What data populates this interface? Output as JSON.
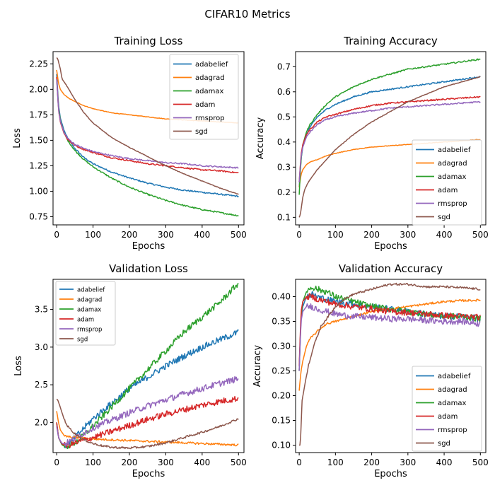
{
  "suptitle": "CIFAR10 Metrics",
  "colors": {
    "adabelief": "#1f77b4",
    "adagrad": "#ff7f0e",
    "adamax": "#2ca02c",
    "adam": "#d62728",
    "rmsprop": "#9467bd",
    "sgd": "#8c564b"
  },
  "chart_data": [
    {
      "type": "line",
      "title": "Training Loss",
      "xlabel": "Epochs",
      "ylabel": "Loss",
      "xlim": [
        -10,
        515
      ],
      "ylim": [
        0.67,
        2.37
      ],
      "xticks": [
        0,
        100,
        200,
        300,
        400,
        500
      ],
      "yticks": [
        0.75,
        1.0,
        1.25,
        1.5,
        1.75,
        2.0,
        2.25
      ],
      "ytick_labels": [
        "0.75",
        "1.00",
        "1.25",
        "1.50",
        "1.75",
        "2.00",
        "2.25"
      ],
      "legend": "top-right",
      "series": [
        {
          "name": "adabelief",
          "x": [
            0,
            5,
            10,
            20,
            30,
            50,
            75,
            100,
            150,
            200,
            250,
            300,
            350,
            400,
            450,
            500
          ],
          "y": [
            2.15,
            1.85,
            1.72,
            1.6,
            1.52,
            1.42,
            1.33,
            1.27,
            1.19,
            1.13,
            1.08,
            1.04,
            1.01,
            0.99,
            0.97,
            0.95
          ]
        },
        {
          "name": "adagrad",
          "x": [
            0,
            5,
            10,
            20,
            30,
            50,
            75,
            100,
            150,
            200,
            250,
            300,
            350,
            400,
            450,
            500
          ],
          "y": [
            2.19,
            2.06,
            2.0,
            1.95,
            1.92,
            1.88,
            1.84,
            1.81,
            1.77,
            1.75,
            1.73,
            1.71,
            1.7,
            1.69,
            1.68,
            1.67
          ]
        },
        {
          "name": "adamax",
          "x": [
            0,
            5,
            10,
            20,
            30,
            50,
            75,
            100,
            150,
            200,
            250,
            300,
            350,
            400,
            450,
            500
          ],
          "y": [
            2.1,
            1.83,
            1.7,
            1.58,
            1.5,
            1.4,
            1.31,
            1.24,
            1.13,
            1.04,
            0.97,
            0.91,
            0.86,
            0.82,
            0.79,
            0.76
          ]
        },
        {
          "name": "adam",
          "x": [
            0,
            5,
            10,
            20,
            30,
            50,
            75,
            100,
            150,
            200,
            250,
            300,
            350,
            400,
            450,
            500
          ],
          "y": [
            2.12,
            1.8,
            1.68,
            1.57,
            1.51,
            1.45,
            1.41,
            1.38,
            1.33,
            1.3,
            1.27,
            1.25,
            1.23,
            1.21,
            1.2,
            1.18
          ]
        },
        {
          "name": "rmsprop",
          "x": [
            0,
            5,
            10,
            20,
            30,
            50,
            75,
            100,
            150,
            200,
            250,
            300,
            350,
            400,
            450,
            500
          ],
          "y": [
            2.1,
            1.8,
            1.69,
            1.58,
            1.52,
            1.46,
            1.42,
            1.39,
            1.35,
            1.32,
            1.3,
            1.28,
            1.27,
            1.25,
            1.24,
            1.23
          ]
        },
        {
          "name": "sgd",
          "x": [
            0,
            3,
            10,
            15,
            25,
            50,
            75,
            100,
            150,
            200,
            250,
            300,
            350,
            400,
            450,
            500
          ],
          "y": [
            2.31,
            2.3,
            2.2,
            2.1,
            2.05,
            1.9,
            1.77,
            1.67,
            1.53,
            1.43,
            1.34,
            1.25,
            1.17,
            1.1,
            1.03,
            0.97
          ]
        }
      ]
    },
    {
      "type": "line",
      "title": "Training Accuracy",
      "xlabel": "Epochs",
      "ylabel": "Accuracy",
      "xlim": [
        -10,
        515
      ],
      "ylim": [
        0.07,
        0.76
      ],
      "xticks": [
        0,
        100,
        200,
        300,
        400,
        500
      ],
      "yticks": [
        0.1,
        0.2,
        0.3,
        0.4,
        0.5,
        0.6,
        0.7
      ],
      "ytick_labels": [
        "0.1",
        "0.2",
        "0.3",
        "0.4",
        "0.5",
        "0.6",
        "0.7"
      ],
      "legend": "bottom-right",
      "series": [
        {
          "name": "adabelief",
          "x": [
            0,
            5,
            10,
            20,
            30,
            50,
            75,
            100,
            150,
            200,
            250,
            300,
            350,
            400,
            450,
            500
          ],
          "y": [
            0.22,
            0.33,
            0.38,
            0.43,
            0.46,
            0.5,
            0.53,
            0.55,
            0.58,
            0.6,
            0.61,
            0.62,
            0.63,
            0.64,
            0.65,
            0.66
          ]
        },
        {
          "name": "adagrad",
          "x": [
            0,
            5,
            10,
            20,
            30,
            50,
            75,
            100,
            150,
            200,
            250,
            300,
            350,
            400,
            450,
            500
          ],
          "y": [
            0.22,
            0.27,
            0.29,
            0.31,
            0.32,
            0.33,
            0.345,
            0.355,
            0.37,
            0.38,
            0.385,
            0.39,
            0.395,
            0.4,
            0.405,
            0.41
          ]
        },
        {
          "name": "adamax",
          "x": [
            0,
            5,
            10,
            20,
            30,
            50,
            75,
            100,
            150,
            200,
            250,
            300,
            350,
            400,
            450,
            500
          ],
          "y": [
            0.19,
            0.33,
            0.39,
            0.44,
            0.47,
            0.51,
            0.55,
            0.58,
            0.62,
            0.65,
            0.67,
            0.69,
            0.7,
            0.71,
            0.72,
            0.73
          ]
        },
        {
          "name": "adam",
          "x": [
            0,
            5,
            10,
            20,
            30,
            50,
            75,
            100,
            150,
            200,
            250,
            300,
            350,
            400,
            450,
            500
          ],
          "y": [
            0.24,
            0.35,
            0.39,
            0.43,
            0.45,
            0.48,
            0.5,
            0.51,
            0.53,
            0.545,
            0.555,
            0.56,
            0.565,
            0.57,
            0.575,
            0.58
          ]
        },
        {
          "name": "rmsprop",
          "x": [
            0,
            5,
            10,
            20,
            30,
            50,
            75,
            100,
            150,
            200,
            250,
            300,
            350,
            400,
            450,
            500
          ],
          "y": [
            0.24,
            0.34,
            0.38,
            0.42,
            0.44,
            0.47,
            0.49,
            0.5,
            0.515,
            0.525,
            0.535,
            0.54,
            0.545,
            0.55,
            0.555,
            0.56
          ]
        },
        {
          "name": "sgd",
          "x": [
            0,
            3,
            10,
            15,
            25,
            50,
            75,
            100,
            150,
            200,
            250,
            300,
            350,
            400,
            450,
            500
          ],
          "y": [
            0.1,
            0.11,
            0.18,
            0.21,
            0.24,
            0.29,
            0.33,
            0.37,
            0.43,
            0.48,
            0.52,
            0.56,
            0.59,
            0.62,
            0.64,
            0.66
          ]
        }
      ]
    },
    {
      "type": "line",
      "title": "Validation Loss",
      "xlabel": "Epochs",
      "ylabel": "Loss",
      "xlim": [
        -10,
        515
      ],
      "ylim": [
        1.6,
        3.9
      ],
      "xticks": [
        0,
        100,
        200,
        300,
        400,
        500
      ],
      "yticks": [
        2.0,
        2.5,
        3.0,
        3.5
      ],
      "ytick_labels": [
        "2.0",
        "2.5",
        "3.0",
        "3.5"
      ],
      "legend": "top-left",
      "series": [
        {
          "name": "adabelief",
          "x": [
            0,
            5,
            15,
            25,
            40,
            60,
            100,
            150,
            200,
            250,
            300,
            350,
            400,
            450,
            500
          ],
          "y": [
            2.0,
            1.8,
            1.7,
            1.69,
            1.74,
            1.85,
            2.05,
            2.25,
            2.45,
            2.6,
            2.75,
            2.88,
            3.0,
            3.1,
            3.2
          ]
        },
        {
          "name": "adagrad",
          "x": [
            0,
            5,
            10,
            20,
            30,
            50,
            75,
            100,
            150,
            200,
            250,
            300,
            350,
            400,
            450,
            500
          ],
          "y": [
            2.15,
            2.0,
            1.9,
            1.83,
            1.81,
            1.8,
            1.79,
            1.78,
            1.77,
            1.76,
            1.75,
            1.74,
            1.73,
            1.72,
            1.71,
            1.7
          ]
        },
        {
          "name": "adamax",
          "x": [
            0,
            5,
            15,
            25,
            40,
            60,
            100,
            150,
            200,
            250,
            300,
            350,
            400,
            450,
            500
          ],
          "y": [
            2.0,
            1.8,
            1.7,
            1.68,
            1.7,
            1.76,
            1.95,
            2.2,
            2.45,
            2.7,
            2.95,
            3.2,
            3.4,
            3.6,
            3.85
          ]
        },
        {
          "name": "adam",
          "x": [
            0,
            5,
            15,
            25,
            40,
            60,
            100,
            150,
            200,
            250,
            300,
            350,
            400,
            450,
            500
          ],
          "y": [
            2.0,
            1.8,
            1.71,
            1.69,
            1.71,
            1.74,
            1.8,
            1.88,
            1.96,
            2.04,
            2.11,
            2.17,
            2.23,
            2.28,
            2.32
          ]
        },
        {
          "name": "rmsprop",
          "x": [
            0,
            5,
            15,
            25,
            40,
            60,
            100,
            150,
            200,
            250,
            300,
            350,
            400,
            450,
            500
          ],
          "y": [
            1.95,
            1.8,
            1.72,
            1.72,
            1.76,
            1.82,
            1.93,
            2.03,
            2.13,
            2.22,
            2.3,
            2.38,
            2.45,
            2.52,
            2.58
          ]
        },
        {
          "name": "sgd",
          "x": [
            0,
            3,
            10,
            20,
            30,
            50,
            75,
            100,
            125,
            150,
            200,
            250,
            300,
            350,
            400,
            450,
            500
          ],
          "y": [
            2.31,
            2.3,
            2.2,
            2.05,
            1.95,
            1.85,
            1.77,
            1.72,
            1.69,
            1.67,
            1.66,
            1.68,
            1.73,
            1.8,
            1.87,
            1.95,
            2.05
          ]
        }
      ]
    },
    {
      "type": "line",
      "title": "Validation Accuracy",
      "xlabel": "Epochs",
      "ylabel": "Accuracy",
      "xlim": [
        -10,
        515
      ],
      "ylim": [
        0.085,
        0.435
      ],
      "xticks": [
        0,
        100,
        200,
        300,
        400,
        500
      ],
      "yticks": [
        0.1,
        0.15,
        0.2,
        0.25,
        0.3,
        0.35,
        0.4
      ],
      "ytick_labels": [
        "0.10",
        "0.15",
        "0.20",
        "0.25",
        "0.30",
        "0.35",
        "0.40"
      ],
      "legend": "bottom-right",
      "series": [
        {
          "name": "adabelief",
          "x": [
            0,
            5,
            10,
            20,
            35,
            50,
            75,
            100,
            150,
            200,
            250,
            300,
            350,
            400,
            450,
            500
          ],
          "y": [
            0.25,
            0.36,
            0.38,
            0.4,
            0.405,
            0.4,
            0.395,
            0.39,
            0.385,
            0.38,
            0.375,
            0.37,
            0.365,
            0.36,
            0.36,
            0.355
          ]
        },
        {
          "name": "adagrad",
          "x": [
            0,
            5,
            10,
            20,
            30,
            50,
            75,
            100,
            150,
            200,
            250,
            300,
            350,
            400,
            450,
            500
          ],
          "y": [
            0.21,
            0.25,
            0.27,
            0.3,
            0.315,
            0.33,
            0.345,
            0.35,
            0.36,
            0.37,
            0.375,
            0.38,
            0.385,
            0.39,
            0.392,
            0.393
          ]
        },
        {
          "name": "adamax",
          "x": [
            0,
            5,
            10,
            20,
            35,
            50,
            75,
            100,
            150,
            200,
            250,
            300,
            350,
            400,
            450,
            500
          ],
          "y": [
            0.25,
            0.36,
            0.39,
            0.41,
            0.42,
            0.415,
            0.41,
            0.4,
            0.39,
            0.38,
            0.375,
            0.37,
            0.365,
            0.36,
            0.36,
            0.355
          ]
        },
        {
          "name": "adam",
          "x": [
            0,
            5,
            10,
            20,
            35,
            50,
            75,
            100,
            150,
            200,
            250,
            300,
            350,
            400,
            450,
            500
          ],
          "y": [
            0.26,
            0.37,
            0.39,
            0.4,
            0.4,
            0.395,
            0.39,
            0.385,
            0.38,
            0.375,
            0.37,
            0.368,
            0.365,
            0.362,
            0.36,
            0.358
          ]
        },
        {
          "name": "rmsprop",
          "x": [
            0,
            5,
            10,
            20,
            35,
            50,
            75,
            100,
            150,
            200,
            250,
            300,
            350,
            400,
            450,
            500
          ],
          "y": [
            0.25,
            0.35,
            0.37,
            0.38,
            0.38,
            0.375,
            0.37,
            0.365,
            0.36,
            0.358,
            0.355,
            0.355,
            0.352,
            0.35,
            0.35,
            0.345
          ]
        },
        {
          "name": "sgd",
          "x": [
            0,
            3,
            8,
            15,
            25,
            40,
            60,
            80,
            100,
            125,
            150,
            200,
            250,
            300,
            350,
            400,
            450,
            500
          ],
          "y": [
            0.1,
            0.1,
            0.19,
            0.22,
            0.26,
            0.3,
            0.34,
            0.36,
            0.38,
            0.395,
            0.405,
            0.415,
            0.425,
            0.425,
            0.42,
            0.42,
            0.418,
            0.415
          ]
        }
      ]
    }
  ]
}
